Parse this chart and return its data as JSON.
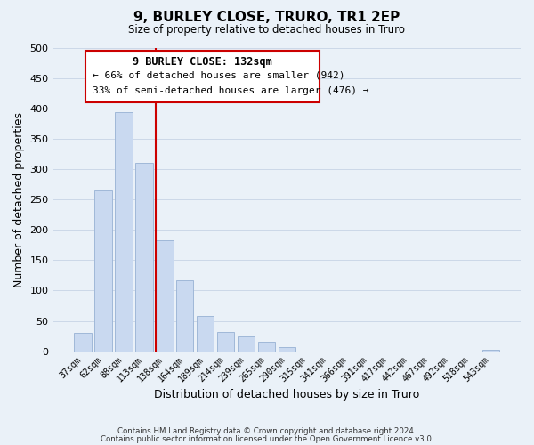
{
  "title": "9, BURLEY CLOSE, TRURO, TR1 2EP",
  "subtitle": "Size of property relative to detached houses in Truro",
  "xlabel": "Distribution of detached houses by size in Truro",
  "ylabel": "Number of detached properties",
  "bar_labels": [
    "37sqm",
    "62sqm",
    "88sqm",
    "113sqm",
    "138sqm",
    "164sqm",
    "189sqm",
    "214sqm",
    "239sqm",
    "265sqm",
    "290sqm",
    "315sqm",
    "341sqm",
    "366sqm",
    "391sqm",
    "417sqm",
    "442sqm",
    "467sqm",
    "492sqm",
    "518sqm",
    "543sqm"
  ],
  "bar_values": [
    30,
    265,
    395,
    310,
    183,
    117,
    58,
    32,
    25,
    15,
    7,
    0,
    0,
    0,
    0,
    0,
    0,
    0,
    0,
    0,
    3
  ],
  "bar_color": "#c9d9f0",
  "bar_edgecolor": "#a0b8d8",
  "vline_index": 4,
  "vline_color": "#cc0000",
  "ylim": [
    0,
    500
  ],
  "yticks": [
    0,
    50,
    100,
    150,
    200,
    250,
    300,
    350,
    400,
    450,
    500
  ],
  "annotation_title": "9 BURLEY CLOSE: 132sqm",
  "annotation_line1": "← 66% of detached houses are smaller (942)",
  "annotation_line2": "33% of semi-detached houses are larger (476) →",
  "annotation_box_facecolor": "#ffffff",
  "annotation_box_edgecolor": "#cc0000",
  "footer_line1": "Contains HM Land Registry data © Crown copyright and database right 2024.",
  "footer_line2": "Contains public sector information licensed under the Open Government Licence v3.0.",
  "grid_color": "#ccd8e8",
  "background_color": "#eaf1f8"
}
